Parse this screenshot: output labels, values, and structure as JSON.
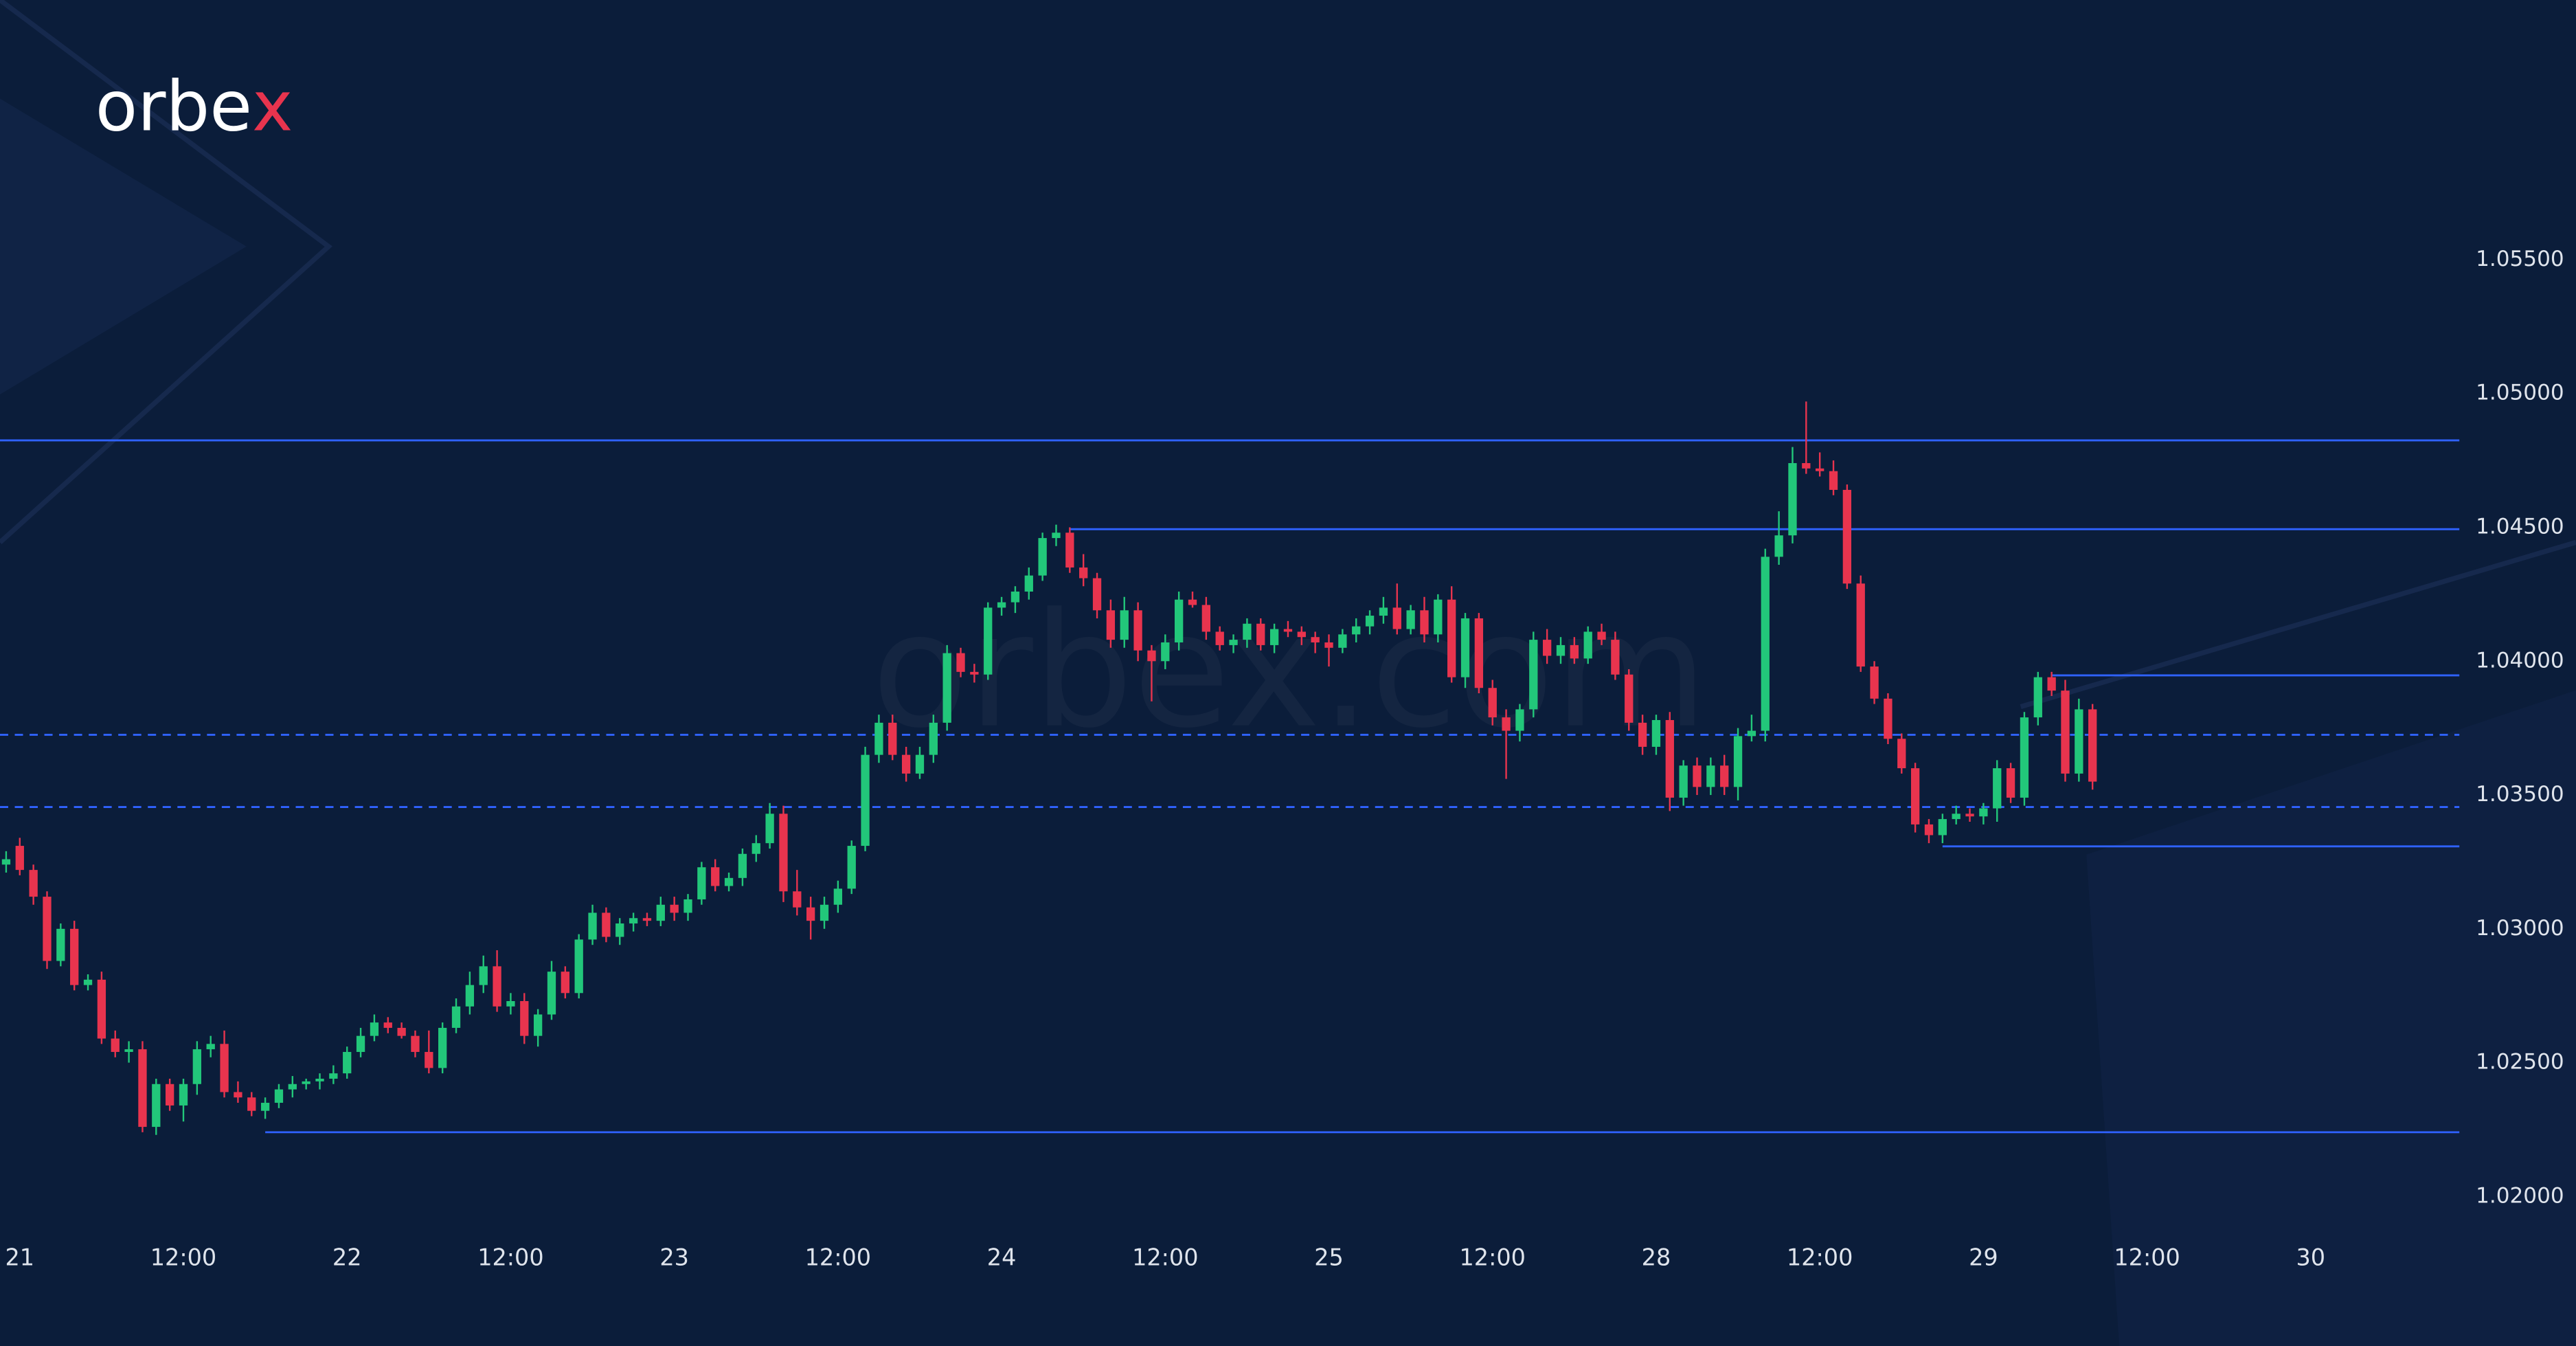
{
  "logo": [
    "orbe",
    "x"
  ],
  "watermark": "orbex.com",
  "chart_data": {
    "type": "candlestick",
    "up_color": "#22c77a",
    "down_color": "#e8344e",
    "level_color": "#2f62ff",
    "xlim": [
      -0.45,
      179.9
    ],
    "xticks": [
      {
        "value": 1,
        "label": "21"
      },
      {
        "value": 13,
        "label": "12:00"
      },
      {
        "value": 25,
        "label": "22"
      },
      {
        "value": 37,
        "label": "12:00"
      },
      {
        "value": 49,
        "label": "23"
      },
      {
        "value": 61,
        "label": "12:00"
      },
      {
        "value": 73,
        "label": "24"
      },
      {
        "value": 85,
        "label": "12:00"
      },
      {
        "value": 97,
        "label": "25"
      },
      {
        "value": 109,
        "label": "12:00"
      },
      {
        "value": 121,
        "label": "28"
      },
      {
        "value": 133,
        "label": "12:00"
      },
      {
        "value": 145,
        "label": "29"
      },
      {
        "value": 157,
        "label": "12:00"
      },
      {
        "value": 169,
        "label": "30"
      }
    ],
    "ylim": [
      1.019,
      1.0575
    ],
    "yticks": [
      {
        "value": 1.055,
        "label": "1.05500"
      },
      {
        "value": 1.05,
        "label": "1.05000"
      },
      {
        "value": 1.045,
        "label": "1.04500"
      },
      {
        "value": 1.04,
        "label": "1.04000"
      },
      {
        "value": 1.035,
        "label": "1.03500"
      },
      {
        "value": 1.03,
        "label": "1.03000"
      },
      {
        "value": 1.025,
        "label": "1.02500"
      },
      {
        "value": 1.02,
        "label": "1.02000"
      }
    ],
    "levels": [
      {
        "value": 1.04825,
        "style": "solid"
      },
      {
        "value": 1.04493,
        "style": "solid",
        "x_start": 78
      },
      {
        "value": 1.03947,
        "style": "solid",
        "x_start": 150
      },
      {
        "value": 1.03725,
        "style": "dashed"
      },
      {
        "value": 1.03455,
        "style": "dashed"
      },
      {
        "value": 1.03308,
        "style": "solid",
        "x_start": 142
      },
      {
        "value": 1.0224,
        "style": "solid",
        "x_start": 19
      }
    ],
    "candles": [
      [
        1.0324,
        1.0329,
        1.0321,
        1.0326
      ],
      [
        1.0331,
        1.0334,
        1.032,
        1.0322
      ],
      [
        1.0322,
        1.0324,
        1.0309,
        1.0312
      ],
      [
        1.0312,
        1.0314,
        1.0285,
        1.0288
      ],
      [
        1.0288,
        1.0302,
        1.0286,
        1.03
      ],
      [
        1.03,
        1.0303,
        1.0277,
        1.0279
      ],
      [
        1.0279,
        1.0283,
        1.0277,
        1.0281
      ],
      [
        1.0281,
        1.0284,
        1.0257,
        1.0259
      ],
      [
        1.0259,
        1.0262,
        1.0252,
        1.0254
      ],
      [
        1.0254,
        1.0258,
        1.025,
        1.0255
      ],
      [
        1.0255,
        1.0258,
        1.0224,
        1.0226
      ],
      [
        1.0226,
        1.0244,
        1.0223,
        1.0242
      ],
      [
        1.0242,
        1.0244,
        1.0232,
        1.0234
      ],
      [
        1.0234,
        1.0244,
        1.0228,
        1.0242
      ],
      [
        1.0242,
        1.0258,
        1.0238,
        1.0255
      ],
      [
        1.0255,
        1.026,
        1.0252,
        1.0257
      ],
      [
        1.0257,
        1.0262,
        1.0237,
        1.0239
      ],
      [
        1.0239,
        1.0243,
        1.0235,
        1.0237
      ],
      [
        1.0237,
        1.0239,
        1.023,
        1.0232
      ],
      [
        1.0232,
        1.0237,
        1.0229,
        1.0235
      ],
      [
        1.0235,
        1.0242,
        1.0233,
        1.024
      ],
      [
        1.024,
        1.0245,
        1.0237,
        1.0242
      ],
      [
        1.0242,
        1.0244,
        1.024,
        1.0243
      ],
      [
        1.0243,
        1.0246,
        1.024,
        1.0244
      ],
      [
        1.0244,
        1.0249,
        1.0242,
        1.0246
      ],
      [
        1.0246,
        1.0256,
        1.0244,
        1.0254
      ],
      [
        1.0254,
        1.0263,
        1.0252,
        1.026
      ],
      [
        1.026,
        1.0268,
        1.0258,
        1.0265
      ],
      [
        1.0265,
        1.0267,
        1.0261,
        1.0263
      ],
      [
        1.0263,
        1.0265,
        1.0259,
        1.026
      ],
      [
        1.026,
        1.0262,
        1.0252,
        1.0254
      ],
      [
        1.0254,
        1.0262,
        1.0246,
        1.0248
      ],
      [
        1.0248,
        1.0265,
        1.0246,
        1.0263
      ],
      [
        1.0263,
        1.0274,
        1.0261,
        1.0271
      ],
      [
        1.0271,
        1.0284,
        1.0268,
        1.0279
      ],
      [
        1.0279,
        1.029,
        1.0276,
        1.0286
      ],
      [
        1.0286,
        1.0292,
        1.0269,
        1.0271
      ],
      [
        1.0271,
        1.0276,
        1.0268,
        1.0273
      ],
      [
        1.0273,
        1.0276,
        1.0257,
        1.026
      ],
      [
        1.026,
        1.027,
        1.0256,
        1.0268
      ],
      [
        1.0268,
        1.0288,
        1.0266,
        1.0284
      ],
      [
        1.0284,
        1.0286,
        1.0274,
        1.0276
      ],
      [
        1.0276,
        1.0298,
        1.0274,
        1.0296
      ],
      [
        1.0296,
        1.0309,
        1.0294,
        1.0306
      ],
      [
        1.0306,
        1.0308,
        1.0295,
        1.0297
      ],
      [
        1.0297,
        1.0304,
        1.0294,
        1.0302
      ],
      [
        1.0302,
        1.0306,
        1.0299,
        1.0304
      ],
      [
        1.0304,
        1.0306,
        1.0301,
        1.0303
      ],
      [
        1.0303,
        1.0312,
        1.0301,
        1.0309
      ],
      [
        1.0309,
        1.0312,
        1.0303,
        1.0306
      ],
      [
        1.0306,
        1.0313,
        1.0303,
        1.0311
      ],
      [
        1.0311,
        1.0325,
        1.0309,
        1.0323
      ],
      [
        1.0323,
        1.0326,
        1.0314,
        1.0316
      ],
      [
        1.0316,
        1.0321,
        1.0314,
        1.0319
      ],
      [
        1.0319,
        1.033,
        1.0316,
        1.0328
      ],
      [
        1.0328,
        1.0335,
        1.0325,
        1.0332
      ],
      [
        1.0332,
        1.0347,
        1.033,
        1.0343
      ],
      [
        1.0343,
        1.0346,
        1.031,
        1.0314
      ],
      [
        1.0314,
        1.0322,
        1.0305,
        1.0308
      ],
      [
        1.0308,
        1.0312,
        1.0296,
        1.0303
      ],
      [
        1.0303,
        1.0312,
        1.03,
        1.0309
      ],
      [
        1.0309,
        1.0318,
        1.0306,
        1.0315
      ],
      [
        1.0315,
        1.0333,
        1.0313,
        1.0331
      ],
      [
        1.0331,
        1.0368,
        1.0329,
        1.0365
      ],
      [
        1.0365,
        1.038,
        1.0362,
        1.0377
      ],
      [
        1.0377,
        1.038,
        1.0363,
        1.0365
      ],
      [
        1.0365,
        1.0368,
        1.0355,
        1.0358
      ],
      [
        1.0358,
        1.0368,
        1.0356,
        1.0365
      ],
      [
        1.0365,
        1.038,
        1.0362,
        1.0377
      ],
      [
        1.0377,
        1.0406,
        1.0374,
        1.0403
      ],
      [
        1.0403,
        1.0405,
        1.0394,
        1.0396
      ],
      [
        1.0396,
        1.0399,
        1.0392,
        1.0395
      ],
      [
        1.0395,
        1.0422,
        1.0393,
        1.042
      ],
      [
        1.042,
        1.0424,
        1.0417,
        1.0422
      ],
      [
        1.0422,
        1.0428,
        1.0418,
        1.0426
      ],
      [
        1.0426,
        1.0435,
        1.0423,
        1.0432
      ],
      [
        1.0432,
        1.0448,
        1.043,
        1.0446
      ],
      [
        1.0446,
        1.0451,
        1.0443,
        1.0448
      ],
      [
        1.0448,
        1.045,
        1.0433,
        1.0435
      ],
      [
        1.0435,
        1.044,
        1.0428,
        1.0431
      ],
      [
        1.0431,
        1.0433,
        1.0416,
        1.0419
      ],
      [
        1.0419,
        1.0423,
        1.0405,
        1.0408
      ],
      [
        1.0408,
        1.0424,
        1.0405,
        1.0419
      ],
      [
        1.0419,
        1.0422,
        1.04,
        1.0404
      ],
      [
        1.0404,
        1.0406,
        1.0385,
        1.04
      ],
      [
        1.04,
        1.041,
        1.0397,
        1.0407
      ],
      [
        1.0407,
        1.0426,
        1.0404,
        1.0423
      ],
      [
        1.0423,
        1.0426,
        1.042,
        1.0421
      ],
      [
        1.0421,
        1.0424,
        1.0408,
        1.0411
      ],
      [
        1.0411,
        1.0413,
        1.0404,
        1.0406
      ],
      [
        1.0406,
        1.041,
        1.0403,
        1.0408
      ],
      [
        1.0408,
        1.0416,
        1.0405,
        1.0414
      ],
      [
        1.0414,
        1.0416,
        1.0404,
        1.0406
      ],
      [
        1.0406,
        1.0414,
        1.0403,
        1.0412
      ],
      [
        1.0412,
        1.0415,
        1.0409,
        1.0411
      ],
      [
        1.0411,
        1.0413,
        1.0406,
        1.0409
      ],
      [
        1.0409,
        1.0411,
        1.0403,
        1.0407
      ],
      [
        1.0407,
        1.041,
        1.0398,
        1.0405
      ],
      [
        1.0405,
        1.0412,
        1.0403,
        1.041
      ],
      [
        1.041,
        1.0416,
        1.0407,
        1.0413
      ],
      [
        1.0413,
        1.0419,
        1.041,
        1.0417
      ],
      [
        1.0417,
        1.0424,
        1.0414,
        1.042
      ],
      [
        1.042,
        1.0429,
        1.041,
        1.0412
      ],
      [
        1.0412,
        1.0421,
        1.041,
        1.0419
      ],
      [
        1.0419,
        1.0424,
        1.0407,
        1.041
      ],
      [
        1.041,
        1.0425,
        1.0407,
        1.0423
      ],
      [
        1.0423,
        1.0428,
        1.0392,
        1.0394
      ],
      [
        1.0394,
        1.0418,
        1.039,
        1.0416
      ],
      [
        1.0416,
        1.0418,
        1.0388,
        1.039
      ],
      [
        1.039,
        1.0393,
        1.0376,
        1.0379
      ],
      [
        1.0379,
        1.0382,
        1.0356,
        1.0374
      ],
      [
        1.0374,
        1.0384,
        1.037,
        1.0382
      ],
      [
        1.0382,
        1.0411,
        1.0379,
        1.0408
      ],
      [
        1.0408,
        1.0412,
        1.0399,
        1.0402
      ],
      [
        1.0402,
        1.0409,
        1.0399,
        1.0406
      ],
      [
        1.0406,
        1.0409,
        1.0399,
        1.0401
      ],
      [
        1.0401,
        1.0413,
        1.0399,
        1.0411
      ],
      [
        1.0411,
        1.0414,
        1.0406,
        1.0408
      ],
      [
        1.0408,
        1.0411,
        1.0393,
        1.0395
      ],
      [
        1.0395,
        1.0397,
        1.0374,
        1.0377
      ],
      [
        1.0377,
        1.038,
        1.0365,
        1.0368
      ],
      [
        1.0368,
        1.038,
        1.0365,
        1.0378
      ],
      [
        1.0378,
        1.0381,
        1.0344,
        1.0349
      ],
      [
        1.0349,
        1.0363,
        1.0346,
        1.0361
      ],
      [
        1.0361,
        1.0364,
        1.035,
        1.0353
      ],
      [
        1.0353,
        1.0364,
        1.035,
        1.0361
      ],
      [
        1.0361,
        1.0365,
        1.035,
        1.0353
      ],
      [
        1.0353,
        1.0375,
        1.0348,
        1.0372
      ],
      [
        1.0372,
        1.038,
        1.037,
        1.0374
      ],
      [
        1.0374,
        1.0442,
        1.037,
        1.0439
      ],
      [
        1.0439,
        1.0456,
        1.0436,
        1.0447
      ],
      [
        1.0447,
        1.048,
        1.0444,
        1.0474
      ],
      [
        1.0474,
        1.0497,
        1.047,
        1.0472
      ],
      [
        1.0472,
        1.0478,
        1.0469,
        1.0471
      ],
      [
        1.0471,
        1.0475,
        1.0462,
        1.0464
      ],
      [
        1.0464,
        1.0466,
        1.0427,
        1.0429
      ],
      [
        1.0429,
        1.0432,
        1.0396,
        1.0398
      ],
      [
        1.0398,
        1.04,
        1.0384,
        1.0386
      ],
      [
        1.0386,
        1.0388,
        1.0369,
        1.0371
      ],
      [
        1.0371,
        1.0373,
        1.0358,
        1.036
      ],
      [
        1.036,
        1.0362,
        1.0336,
        1.0339
      ],
      [
        1.0339,
        1.0341,
        1.0332,
        1.0335
      ],
      [
        1.0335,
        1.0343,
        1.0332,
        1.0341
      ],
      [
        1.0341,
        1.0346,
        1.0339,
        1.0343
      ],
      [
        1.0343,
        1.0345,
        1.034,
        1.0342
      ],
      [
        1.0342,
        1.0347,
        1.0339,
        1.0345
      ],
      [
        1.0345,
        1.0363,
        1.034,
        1.036
      ],
      [
        1.036,
        1.0362,
        1.0347,
        1.0349
      ],
      [
        1.0349,
        1.0381,
        1.0346,
        1.0379
      ],
      [
        1.0379,
        1.0396,
        1.0376,
        1.0394
      ],
      [
        1.0394,
        1.0396,
        1.0387,
        1.0389
      ],
      [
        1.0389,
        1.0393,
        1.0355,
        1.0358
      ],
      [
        1.0358,
        1.0386,
        1.0355,
        1.0382
      ],
      [
        1.0382,
        1.0384,
        1.0352,
        1.0355
      ]
    ]
  }
}
